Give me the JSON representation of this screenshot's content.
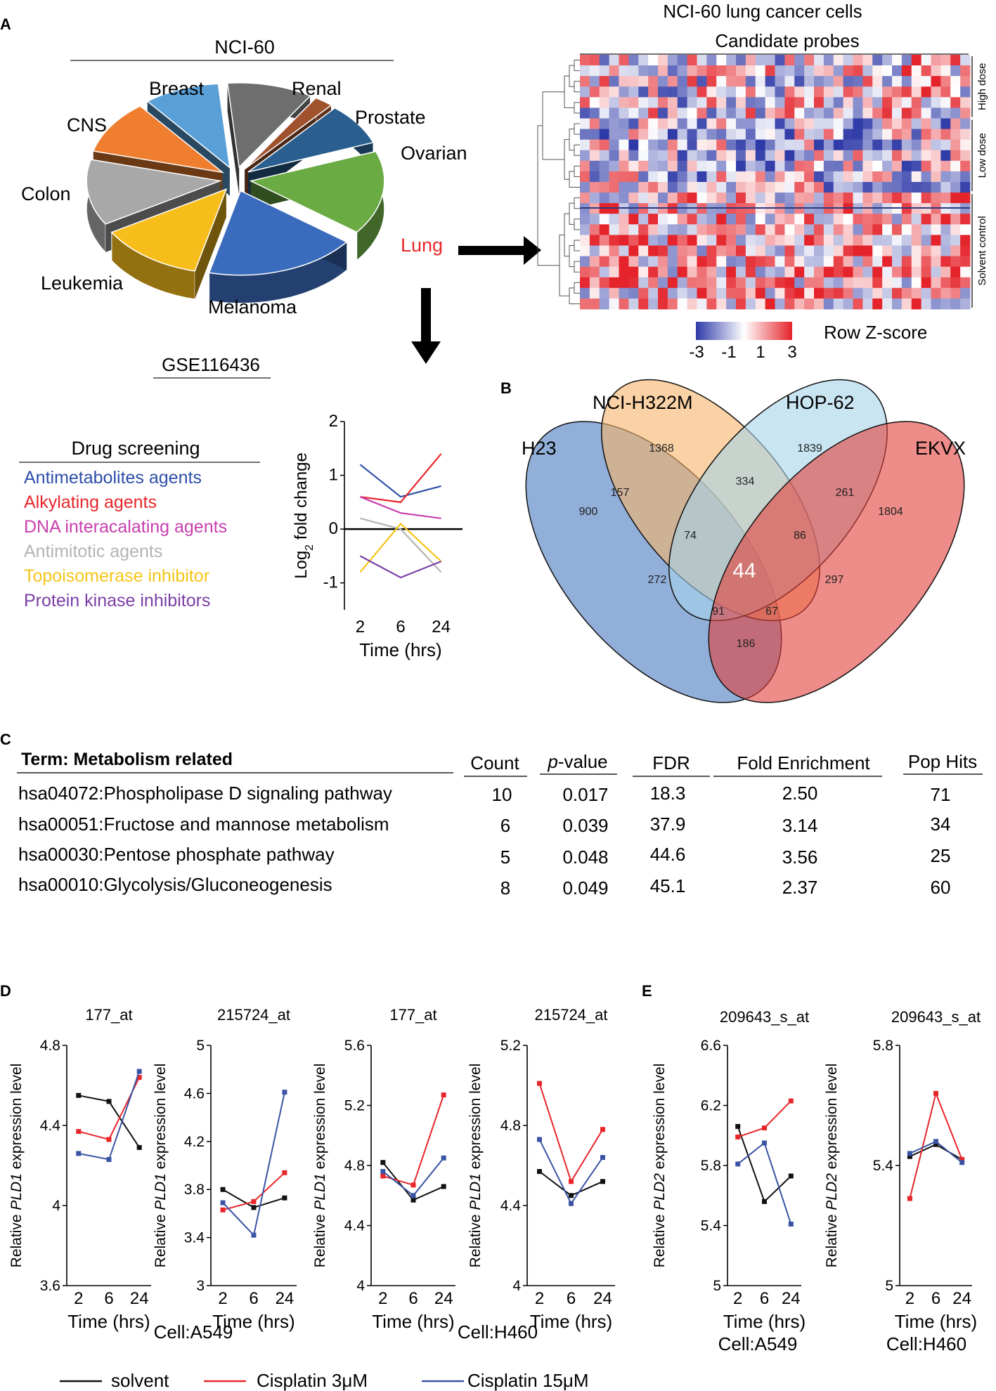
{
  "panels": {
    "A": "A",
    "B": "B",
    "C": "C",
    "D": "D",
    "E": "E"
  },
  "pie": {
    "title": "NCI-60",
    "slices": [
      {
        "label": "Renal",
        "value": 9,
        "color": "#6e6e6e"
      },
      {
        "label": "Prostate",
        "value": 2,
        "color": "#a0522d"
      },
      {
        "label": "Ovarian",
        "value": 7,
        "color": "#2a5f8f"
      },
      {
        "label": "Lung",
        "value": 14,
        "color": "#6aab44",
        "label_color": "#e8262a"
      },
      {
        "label": "Melanoma",
        "value": 16,
        "color": "#3a6bbd"
      },
      {
        "label": "Leukemia",
        "value": 11,
        "color": "#f7bd1a"
      },
      {
        "label": "Colon",
        "value": 11,
        "color": "#a8a8a8"
      },
      {
        "label": "CNS",
        "value": 9,
        "color": "#ef7e2f"
      },
      {
        "label": "Breast",
        "value": 8,
        "color": "#5aa0d8"
      }
    ]
  },
  "heatmap": {
    "title": "NCI-60 lung cancer cells",
    "subtitle": "Candidate probes",
    "rows": 24,
    "cols": 40,
    "groups": [
      {
        "label": "High dose",
        "rows": 6
      },
      {
        "label": "Low dose",
        "rows": 7
      },
      {
        "label": "Solvent control",
        "rows": 11
      }
    ],
    "scale_label": "Row Z-score",
    "scale_ticks": [
      "-3",
      "-1",
      "1",
      "3"
    ],
    "colors": {
      "low": "#2e3aa7",
      "mid": "#ffffff",
      "high": "#e4232a"
    }
  },
  "gse": {
    "title": "GSE116436"
  },
  "drug_screening": {
    "title": "Drug screening",
    "items": [
      {
        "label": "Antimetabolites agents",
        "color": "#2d4ea8"
      },
      {
        "label": "Alkylating agents",
        "color": "#e8262a"
      },
      {
        "label": "DNA interacalating agents",
        "color": "#c83fae"
      },
      {
        "label": "Antimitotic agents",
        "color": "#b4b4b4"
      },
      {
        "label": "Topoisomerase inhibitor",
        "color": "#f5c518"
      },
      {
        "label": "Protein kinase inhibitors",
        "color": "#7a3ea6"
      }
    ]
  },
  "chart_data": [
    {
      "type": "line",
      "name": "drug-screening-log2fc",
      "x": [
        2,
        6,
        24
      ],
      "xticks": [
        "2",
        "6",
        "24"
      ],
      "xlabel": "Time (hrs)",
      "ylabel": "Log2 fold change",
      "yticks": [
        "2",
        "1",
        "0",
        "-1"
      ],
      "ylim": [
        -1.5,
        2
      ],
      "series": [
        {
          "name": "Antimetabolites agents",
          "color": "#2d4ea8",
          "values": [
            1.2,
            0.6,
            0.8
          ]
        },
        {
          "name": "Alkylating agents",
          "color": "#e8262a",
          "values": [
            0.6,
            0.5,
            1.4
          ]
        },
        {
          "name": "DNA interacalating agents",
          "color": "#c83fae",
          "values": [
            0.6,
            0.3,
            0.2
          ]
        },
        {
          "name": "Antimitotic agents",
          "color": "#b4b4b4",
          "values": [
            0.2,
            0,
            -0.8
          ]
        },
        {
          "name": "Topoisomerase inhibitor",
          "color": "#f5c518",
          "values": [
            -0.8,
            0.1,
            -0.6
          ]
        },
        {
          "name": "Protein kinase inhibitors",
          "color": "#7a3ea6",
          "values": [
            -0.5,
            -0.9,
            -0.6
          ]
        }
      ]
    },
    {
      "type": "line",
      "name": "D1",
      "title": "177_at",
      "ylabel_pre": "Relative ",
      "ylabel_gene": "PLD1",
      "ylabel_post": " expression level",
      "ylim": [
        3.6,
        4.8
      ],
      "yticks": [
        "4.8",
        "4.4",
        "4",
        "3.6"
      ],
      "ytick_values": [
        4.8,
        4.4,
        4.0,
        3.6
      ],
      "x": [
        2,
        6,
        24
      ],
      "xticks": [
        "2",
        "6",
        "24"
      ],
      "xlabel": "Time (hrs)",
      "series": [
        {
          "name": "solvent",
          "color": "#111111",
          "values": [
            4.55,
            4.52,
            4.29
          ]
        },
        {
          "name": "Cisplatin 3μM",
          "color": "#e8262a",
          "values": [
            4.37,
            4.33,
            4.64
          ]
        },
        {
          "name": "Cisplatin 15μM",
          "color": "#3a53a4",
          "values": [
            4.26,
            4.23,
            4.67
          ]
        }
      ]
    },
    {
      "type": "line",
      "name": "D2",
      "title": "215724_at",
      "ylabel_pre": "Relative ",
      "ylabel_gene": "PLD1",
      "ylabel_post": " expression level",
      "ylim": [
        3,
        5
      ],
      "yticks": [
        "5",
        "4.6",
        "4.2",
        "3.8",
        "3.4",
        "3"
      ],
      "ytick_values": [
        5,
        4.6,
        4.2,
        3.8,
        3.4,
        3.0
      ],
      "x": [
        2,
        6,
        24
      ],
      "xticks": [
        "2",
        "6",
        "24"
      ],
      "xlabel": "Time (hrs)",
      "series": [
        {
          "name": "solvent",
          "color": "#111111",
          "values": [
            3.8,
            3.65,
            3.73
          ]
        },
        {
          "name": "Cisplatin 3μM",
          "color": "#e8262a",
          "values": [
            3.63,
            3.7,
            3.94
          ]
        },
        {
          "name": "Cisplatin 15μM",
          "color": "#3a53a4",
          "values": [
            3.69,
            3.42,
            4.61
          ]
        }
      ]
    },
    {
      "type": "line",
      "name": "D3",
      "title": "177_at",
      "ylabel_pre": "Relative ",
      "ylabel_gene": "PLD1",
      "ylabel_post": " expression level",
      "ylim": [
        4,
        5.6
      ],
      "yticks": [
        "5.6",
        "5.2",
        "4.8",
        "4.4",
        "4"
      ],
      "ytick_values": [
        5.6,
        5.2,
        4.8,
        4.4,
        4.0
      ],
      "x": [
        2,
        6,
        24
      ],
      "xticks": [
        "2",
        "6",
        "24"
      ],
      "xlabel": "Time (hrs)",
      "series": [
        {
          "name": "solvent",
          "color": "#111111",
          "values": [
            4.82,
            4.57,
            4.66
          ]
        },
        {
          "name": "Cisplatin 3μM",
          "color": "#e8262a",
          "values": [
            4.73,
            4.67,
            5.27
          ]
        },
        {
          "name": "Cisplatin 15μM",
          "color": "#3a53a4",
          "values": [
            4.76,
            4.6,
            4.85
          ]
        }
      ]
    },
    {
      "type": "line",
      "name": "D4",
      "title": "215724_at",
      "ylabel_pre": "Relative ",
      "ylabel_gene": "PLD1",
      "ylabel_post": " expression level",
      "ylim": [
        4,
        5.2
      ],
      "yticks": [
        "5.2",
        "4.8",
        "4.4",
        "4"
      ],
      "ytick_values": [
        5.2,
        4.8,
        4.4,
        4.0
      ],
      "x": [
        2,
        6,
        24
      ],
      "xticks": [
        "2",
        "6",
        "24"
      ],
      "xlabel": "Time (hrs)",
      "series": [
        {
          "name": "solvent",
          "color": "#111111",
          "values": [
            4.57,
            4.45,
            4.52
          ]
        },
        {
          "name": "Cisplatin 3μM",
          "color": "#e8262a",
          "values": [
            5.01,
            4.52,
            4.78
          ]
        },
        {
          "name": "Cisplatin 15μM",
          "color": "#3a53a4",
          "values": [
            4.73,
            4.41,
            4.64
          ]
        }
      ]
    },
    {
      "type": "line",
      "name": "E1",
      "title": "209643_s_at",
      "ylabel_pre": "Relative ",
      "ylabel_gene": "PLD2",
      "ylabel_post": " expression level",
      "ylim": [
        5,
        6.6
      ],
      "yticks": [
        "6.6",
        "6.2",
        "5.8",
        "5.4",
        "5"
      ],
      "ytick_values": [
        6.6,
        6.2,
        5.8,
        5.4,
        5.0
      ],
      "x": [
        2,
        6,
        24
      ],
      "xticks": [
        "2",
        "6",
        "24"
      ],
      "xlabel": "Time (hrs)",
      "series": [
        {
          "name": "solvent",
          "color": "#111111",
          "values": [
            6.06,
            5.56,
            5.73
          ]
        },
        {
          "name": "Cisplatin 3μM",
          "color": "#e8262a",
          "values": [
            5.99,
            6.05,
            6.23
          ]
        },
        {
          "name": "Cisplatin 15μM",
          "color": "#3a53a4",
          "values": [
            5.81,
            5.95,
            5.41
          ]
        }
      ]
    },
    {
      "type": "line",
      "name": "E2",
      "title": "209643_s_at",
      "ylabel_pre": "Relative ",
      "ylabel_gene": "PLD2",
      "ylabel_post": " expression level",
      "ylim": [
        5,
        5.8
      ],
      "yticks": [
        "5.8",
        "5.4",
        "5"
      ],
      "ytick_values": [
        5.8,
        5.4,
        5.0
      ],
      "x": [
        2,
        6,
        24
      ],
      "xticks": [
        "2",
        "6",
        "24"
      ],
      "xlabel": "Time (hrs)",
      "series": [
        {
          "name": "solvent",
          "color": "#111111",
          "values": [
            5.43,
            5.47,
            5.42
          ]
        },
        {
          "name": "Cisplatin 3μM",
          "color": "#e8262a",
          "values": [
            5.29,
            5.64,
            5.42
          ]
        },
        {
          "name": "Cisplatin 15μM",
          "color": "#3a53a4",
          "values": [
            5.44,
            5.48,
            5.41
          ]
        }
      ]
    }
  ],
  "venn": {
    "sets": [
      {
        "label": "H23",
        "color": "#4a7abf"
      },
      {
        "label": "NCI-H322M",
        "color": "#f6b469"
      },
      {
        "label": "HOP-62",
        "color": "#a7d3ea"
      },
      {
        "label": "EKVX",
        "color": "#e23f3a"
      }
    ],
    "counts": {
      "h23_only": "900",
      "h322m_only": "1368",
      "hop62_only": "1839",
      "ekvx_only": "1804",
      "h23_h322m": "157",
      "h322m_hop62": "334",
      "hop62_ekvx": "261",
      "h23_h322m_hop62": "74",
      "h322m_hop62_ekvx": "86",
      "all": "44",
      "h23_hop62": "272",
      "h322m_ekvx": "297",
      "h23_hop62_ekvx": "91",
      "h23_h322m_ekvx": "67",
      "h23_ekvx": "186"
    }
  },
  "table": {
    "headers": {
      "term": "Term: Metabolism related",
      "count": "Count",
      "pvalue_italic": "p",
      "pvalue_rest": "-value",
      "fdr": "FDR",
      "fold": "Fold Enrichment",
      "pop": "Pop Hits"
    },
    "rows": [
      {
        "term": "hsa04072:Phospholipase D signaling pathway",
        "count": "10",
        "pvalue": "0.017",
        "fdr": "18.3",
        "fold": "2.50",
        "pop": "71"
      },
      {
        "term": "hsa00051:Fructose and mannose metabolism",
        "count": "6",
        "pvalue": "0.039",
        "fdr": "37.9",
        "fold": "3.14",
        "pop": "34"
      },
      {
        "term": "hsa00030:Pentose phosphate pathway",
        "count": "5",
        "pvalue": "0.048",
        "fdr": "44.6",
        "fold": "3.56",
        "pop": "25"
      },
      {
        "term": "hsa00010:Glycolysis/Gluconeogenesis",
        "count": "8",
        "pvalue": "0.049",
        "fdr": "45.1",
        "fold": "2.37",
        "pop": "60"
      }
    ]
  },
  "cells": {
    "d_left": "Cell:A549",
    "d_right": "Cell:H460",
    "e_left": "Cell:A549",
    "e_right": "Cell:H460"
  },
  "legend": [
    {
      "label": "solvent",
      "color": "#111111"
    },
    {
      "label": "Cisplatin 3μM",
      "color": "#e8262a"
    },
    {
      "label": "Cisplatin 15μM",
      "color": "#3a53a4"
    }
  ]
}
